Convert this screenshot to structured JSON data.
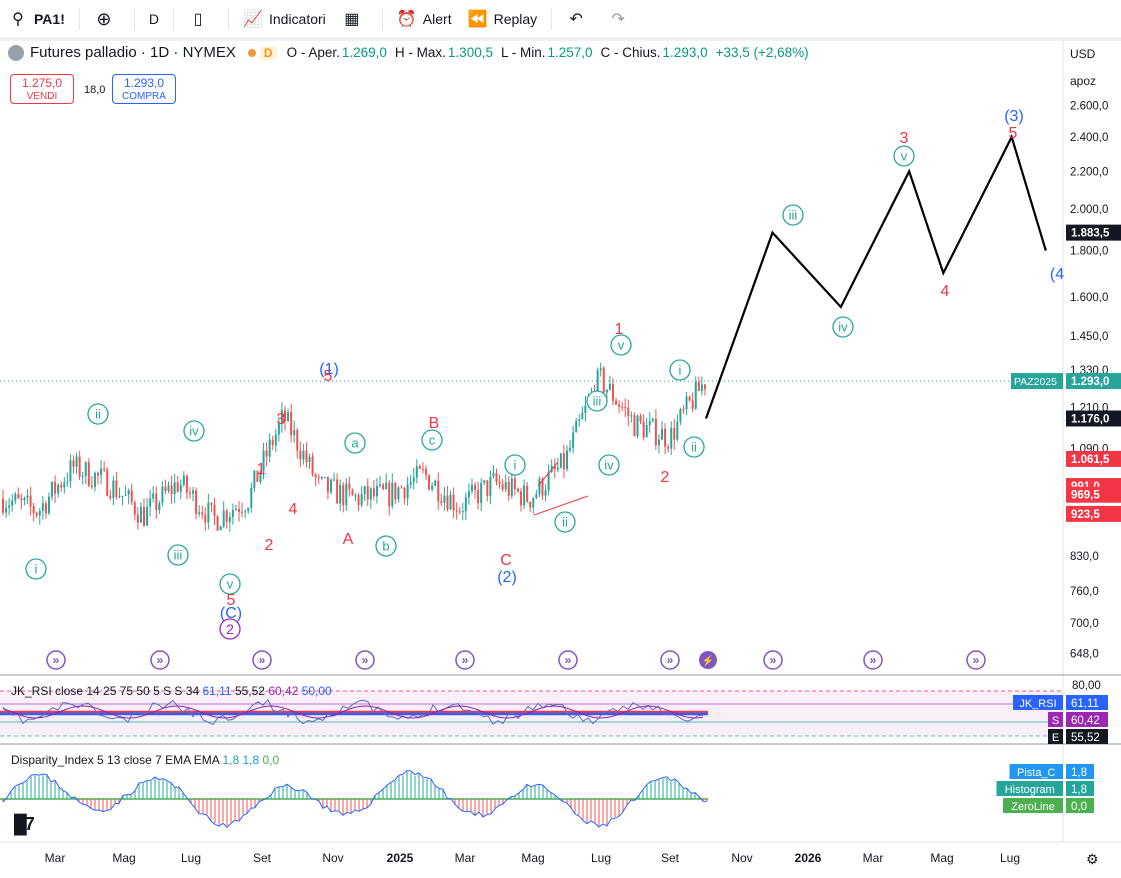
{
  "toolbar": {
    "symbol": "PA1!",
    "interval": "D",
    "indicators": "Indicatori",
    "alert": "Alert",
    "replay": "Replay"
  },
  "header": {
    "title": "Futures palladio · 1D · NYMEX",
    "data_badge": "D",
    "ohlc": [
      {
        "label": "O - Aper.",
        "value": "1.269,0"
      },
      {
        "label": "H - Max.",
        "value": "1.300,5"
      },
      {
        "label": "L - Min.",
        "value": "1.257,0"
      },
      {
        "label": "C - Chius.",
        "value": "1.293,0"
      }
    ],
    "change": "+33,5 (+2,68%)"
  },
  "trade": {
    "sell_price": "1.275,0",
    "sell_label": "VENDI",
    "buy_price": "1.293,0",
    "buy_label": "COMPRA",
    "spread": "18,0"
  },
  "axis": {
    "currency": "USD",
    "unit": "apoz",
    "ticks": [
      {
        "label": "2.600,0",
        "v": 2600
      },
      {
        "label": "2.400,0",
        "v": 2400
      },
      {
        "label": "2.200,0",
        "v": 2200
      },
      {
        "label": "2.000,0",
        "v": 2000
      },
      {
        "label": "1.800,0",
        "v": 1800
      },
      {
        "label": "1.600,0",
        "v": 1600
      },
      {
        "label": "1.450,0",
        "v": 1450
      },
      {
        "label": "1.330,0",
        "v": 1330
      },
      {
        "label": "1.210,0",
        "v": 1210
      },
      {
        "label": "1.090,0",
        "v": 1090
      },
      {
        "label": "830,0",
        "v": 830
      },
      {
        "label": "760,0",
        "v": 760
      },
      {
        "label": "700,0",
        "v": 700
      },
      {
        "label": "648,0",
        "v": 648
      }
    ],
    "price_labels": [
      {
        "text": "1.883,5",
        "v": 1883.5,
        "color": "#131722"
      },
      {
        "text": "1.293,0",
        "v": 1293,
        "color": "#26a69a",
        "tag": "PAZ2025"
      },
      {
        "text": "1.176,0",
        "v": 1176,
        "color": "#131722"
      },
      {
        "text": "1.061,5",
        "v": 1061.5,
        "color": "#f23645"
      },
      {
        "text": "991,0",
        "v": 991,
        "color": "#f23645"
      },
      {
        "text": "969,5",
        "v": 969.5,
        "color": "#f23645"
      },
      {
        "text": "923,5",
        "v": 923.5,
        "color": "#f23645"
      }
    ]
  },
  "time_axis": [
    "Mar",
    "Mag",
    "Lug",
    "Set",
    "Nov",
    "2025",
    "Mar",
    "Mag",
    "Lug",
    "Set",
    "Nov",
    "2026",
    "Mar",
    "Mag",
    "Lug"
  ],
  "wave_labels": {
    "green_circled": [
      "i",
      "ii",
      "iii",
      "iv",
      "v",
      "a",
      "b",
      "c",
      "i",
      "ii",
      "iii",
      "iv",
      "v",
      "i",
      "ii",
      "iii",
      "iv",
      "v"
    ],
    "red": [
      "5",
      "1",
      "2",
      "3",
      "4",
      "5",
      "A",
      "B",
      "C",
      "1",
      "2",
      "3",
      "4",
      "5"
    ],
    "blue": [
      "(C)",
      "(1)",
      "(2)",
      "(3)",
      "(4"
    ],
    "purple": [
      "2"
    ]
  },
  "rsi": {
    "title": "JK_RSI close 14 25 75 50 5 S S 34",
    "values": [
      "61,11",
      "55,52",
      "60,42",
      "50,00"
    ],
    "axis_top": "80,00",
    "tags": [
      {
        "name": "JK_RSI",
        "value": "61,11",
        "color": "#2962ff"
      },
      {
        "name": "S",
        "value": "60,42",
        "color": "#9c27b0"
      },
      {
        "name": "E",
        "value": "55,52",
        "color": "#131722"
      }
    ]
  },
  "disparity": {
    "title": "Disparity_Index 5 13 close 7 EMA EMA",
    "values": [
      "1,8",
      "1,8",
      "0,0"
    ],
    "tags": [
      {
        "name": "Pista_C",
        "value": "1,8",
        "color": "#2196f3"
      },
      {
        "name": "Histogram",
        "value": "1,8",
        "color": "#26a69a"
      },
      {
        "name": "ZeroLine",
        "value": "0,0",
        "color": "#4caf50"
      }
    ]
  },
  "chart_data": {
    "type": "candlestick",
    "title": "Futures palladio · 1D · NYMEX",
    "ylabel": "USD",
    "ylim": [
      600,
      2700
    ],
    "scale": "log",
    "x": [
      "2024-02",
      "2024-03",
      "2024-04",
      "2024-05",
      "2024-06",
      "2024-07",
      "2024-08",
      "2024-09",
      "2024-10",
      "2024-11",
      "2024-12",
      "2025-01",
      "2025-02",
      "2025-03",
      "2025-04",
      "2025-05",
      "2025-06",
      "2025-07",
      "2025-08",
      "2025-09",
      "2025-10"
    ],
    "series": [
      {
        "values": [
          960,
          930,
          1040,
          1000,
          920,
          1000,
          910,
          960,
          1180,
          990,
          960,
          970,
          1020,
          940,
          1000,
          960,
          1050,
          1300,
          1160,
          1120,
          1293
        ]
      }
    ],
    "projection": {
      "dates": [
        "2025-10",
        "2025-12",
        "2026-02",
        "2026-04",
        "2026-05",
        "2026-07",
        "2026-08"
      ],
      "values": [
        1176,
        1883.5,
        1560,
        2200,
        1700,
        2400,
        1800
      ]
    }
  }
}
